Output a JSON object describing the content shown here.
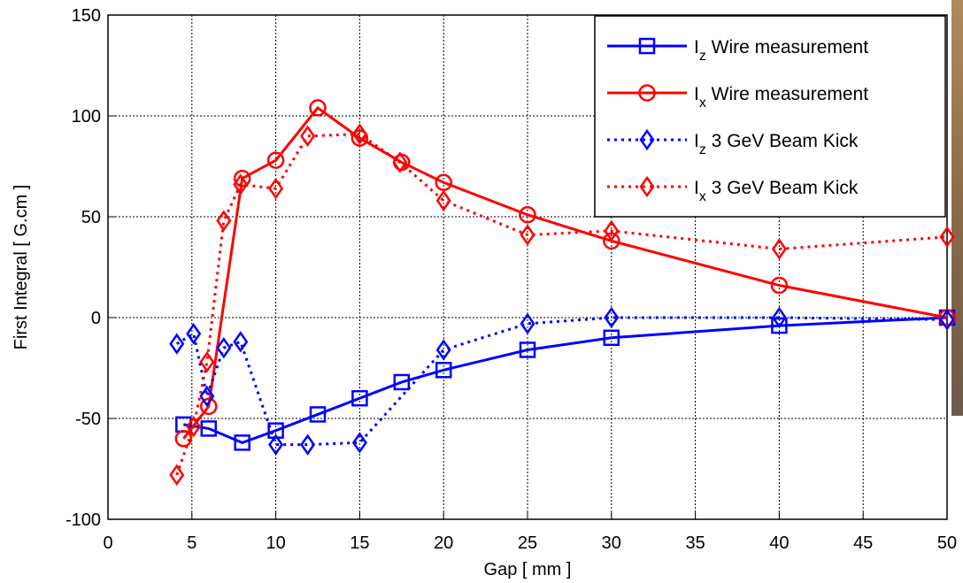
{
  "chart_data": {
    "type": "line",
    "x_label": "Gap [ mm ]",
    "y_label": "First Integral [ G.cm ]",
    "xlim": [
      0,
      50
    ],
    "xticks": [
      0,
      5,
      10,
      15,
      20,
      25,
      30,
      35,
      40,
      45,
      50
    ],
    "ylim": [
      -100,
      150
    ],
    "yticks": [
      -100,
      -50,
      0,
      50,
      100,
      150
    ],
    "grid": true,
    "legend": "upper right",
    "series": [
      {
        "name": "Iz Wire measurement",
        "color": "#0000ff",
        "linestyle": "solid",
        "marker": "square",
        "x": [
          4.5,
          6,
          8,
          10,
          12.5,
          15,
          17.5,
          20,
          25,
          30,
          40,
          50
        ],
        "values": [
          -53,
          -55,
          -62,
          -56,
          -48,
          -40,
          -32,
          -26,
          -16,
          -10,
          -4,
          0
        ]
      },
      {
        "name": "Ix Wire measurement",
        "color": "#ff0000",
        "linestyle": "solid",
        "marker": "circle",
        "x": [
          4.5,
          6,
          8,
          10,
          12.5,
          15,
          17.5,
          20,
          25,
          30,
          40,
          50
        ],
        "values": [
          -60,
          -44,
          69,
          78,
          104,
          89,
          77,
          67,
          51,
          38,
          16,
          0
        ]
      },
      {
        "name": "Iz 3 GeV Beam Kick",
        "color": "#0000ff",
        "linestyle": "dotted",
        "marker": "diamond",
        "x": [
          4.1,
          5.1,
          5.9,
          6.9,
          7.9,
          10,
          11.9,
          15,
          20,
          25,
          30,
          40,
          50
        ],
        "values": [
          -13,
          -8,
          -39,
          -15,
          -12,
          -63,
          -63,
          -62,
          -16,
          -3,
          0,
          0,
          -1
        ]
      },
      {
        "name": "Ix 3 GeV Beam Kick",
        "color": "#ff0000",
        "linestyle": "dotted",
        "marker": "diamond",
        "x": [
          4.1,
          5.1,
          5.9,
          6.9,
          7.9,
          10,
          11.9,
          15,
          17.4,
          20,
          25,
          30,
          40,
          50
        ],
        "values": [
          -78,
          -54,
          -22,
          48,
          66,
          64,
          90,
          91,
          77,
          58,
          41,
          43,
          34,
          40
        ]
      }
    ]
  }
}
